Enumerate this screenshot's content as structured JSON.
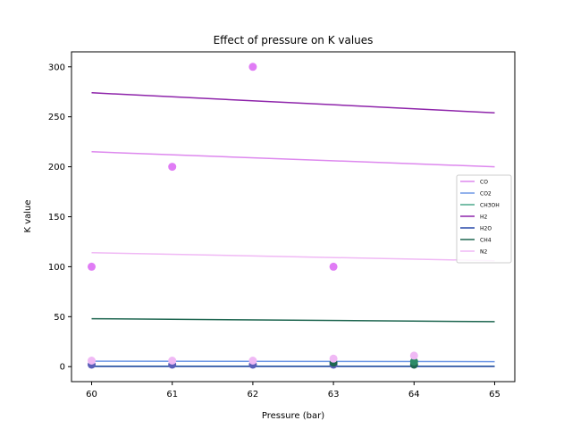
{
  "chart_data": {
    "type": "line",
    "title": "Effect of pressure on K values",
    "xlabel": "Pressure (bar)",
    "ylabel": "K value",
    "xlim": [
      59.75,
      65.25
    ],
    "ylim": [
      -15,
      315
    ],
    "xticks": [
      60,
      61,
      62,
      63,
      64,
      65
    ],
    "yticks": [
      0,
      50,
      100,
      150,
      200,
      250,
      300
    ],
    "grid": false,
    "legend_position": "right",
    "series": [
      {
        "name": "CO",
        "color": "#dd88ee",
        "line": [
          [
            60,
            215
          ],
          [
            65,
            200
          ]
        ]
      },
      {
        "name": "CO2",
        "color": "#6f98e6",
        "line": [
          [
            60,
            5.5
          ],
          [
            65,
            5
          ]
        ]
      },
      {
        "name": "CH3OH",
        "color": "#4aa98a",
        "line": [
          [
            60,
            0.5
          ],
          [
            65,
            0.5
          ]
        ]
      },
      {
        "name": "H2",
        "color": "#8e24aa",
        "line": [
          [
            60,
            274
          ],
          [
            65,
            254
          ]
        ]
      },
      {
        "name": "H2O",
        "color": "#2948a8",
        "line": [
          [
            60,
            0.2
          ],
          [
            65,
            0.2
          ]
        ]
      },
      {
        "name": "CH4",
        "color": "#1e6650",
        "line": [
          [
            60,
            48
          ],
          [
            65,
            45
          ]
        ]
      },
      {
        "name": "N2",
        "color": "#f0b9f5",
        "line": [
          [
            60,
            114
          ],
          [
            65,
            106
          ]
        ]
      }
    ],
    "scatter_points": [
      {
        "x": 60,
        "y": 100,
        "color": "#e07cf5"
      },
      {
        "x": 61,
        "y": 200,
        "color": "#e07cf5"
      },
      {
        "x": 62,
        "y": 300,
        "color": "#e07cf5"
      },
      {
        "x": 63,
        "y": 100,
        "color": "#e07cf5"
      },
      {
        "x": 60,
        "y": 2,
        "color": "#5a5fb8"
      },
      {
        "x": 61,
        "y": 2,
        "color": "#5a5fb8"
      },
      {
        "x": 62,
        "y": 2,
        "color": "#5a5fb8"
      },
      {
        "x": 63,
        "y": 2,
        "color": "#5a5fb8"
      },
      {
        "x": 63,
        "y": 4,
        "color": "#1e6650"
      },
      {
        "x": 64,
        "y": 2,
        "color": "#1e6650"
      },
      {
        "x": 64,
        "y": 5,
        "color": "#2b8a66"
      },
      {
        "x": 60,
        "y": 6,
        "color": "#f0b9f5"
      },
      {
        "x": 61,
        "y": 6,
        "color": "#f0b9f5"
      },
      {
        "x": 62,
        "y": 6,
        "color": "#f0b9f5"
      },
      {
        "x": 63,
        "y": 8,
        "color": "#f0b9f5"
      },
      {
        "x": 64,
        "y": 11,
        "color": "#f0b9f5"
      }
    ]
  }
}
